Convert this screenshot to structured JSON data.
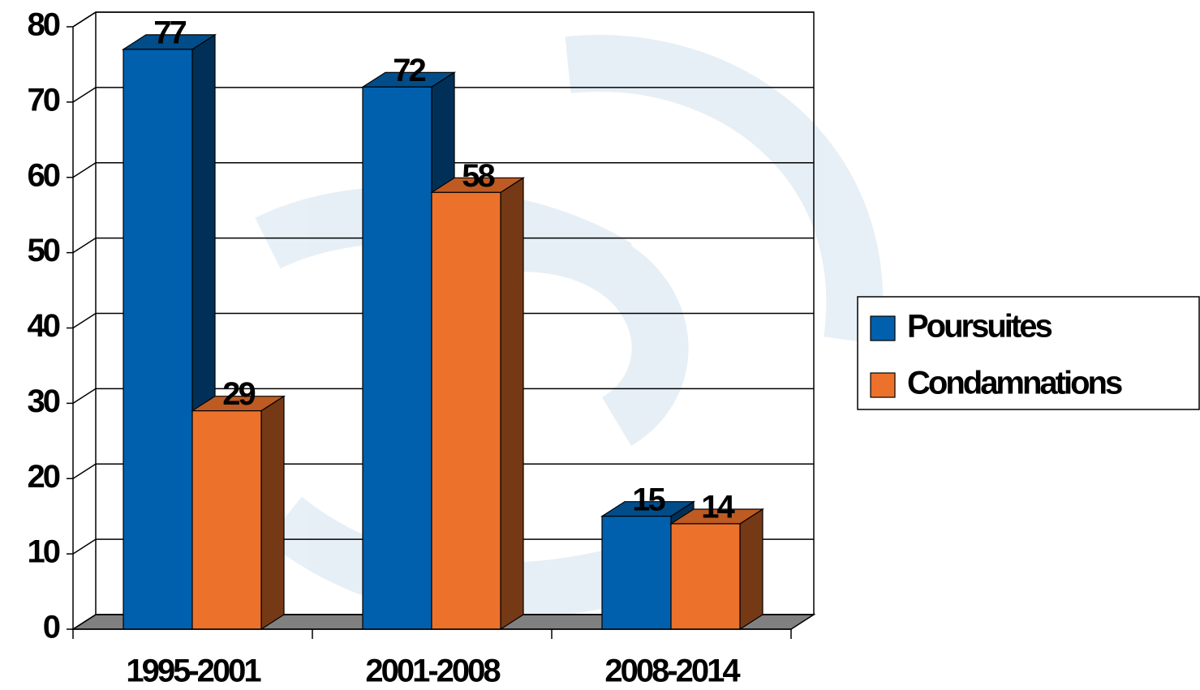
{
  "chart_data": {
    "type": "bar3d",
    "categories": [
      "1995-2001",
      "2001-2008",
      "2008-2014"
    ],
    "series": [
      {
        "name": "Poursuites",
        "color": "#0060ad",
        "values": [
          77,
          72,
          15
        ]
      },
      {
        "name": "Condamnations",
        "color": "#ec722c",
        "values": [
          29,
          58,
          14
        ]
      }
    ],
    "ylim": [
      0,
      80
    ],
    "yticks": [
      0,
      10,
      20,
      30,
      40,
      50,
      60,
      70,
      80
    ],
    "grid": true,
    "legend": "right"
  }
}
